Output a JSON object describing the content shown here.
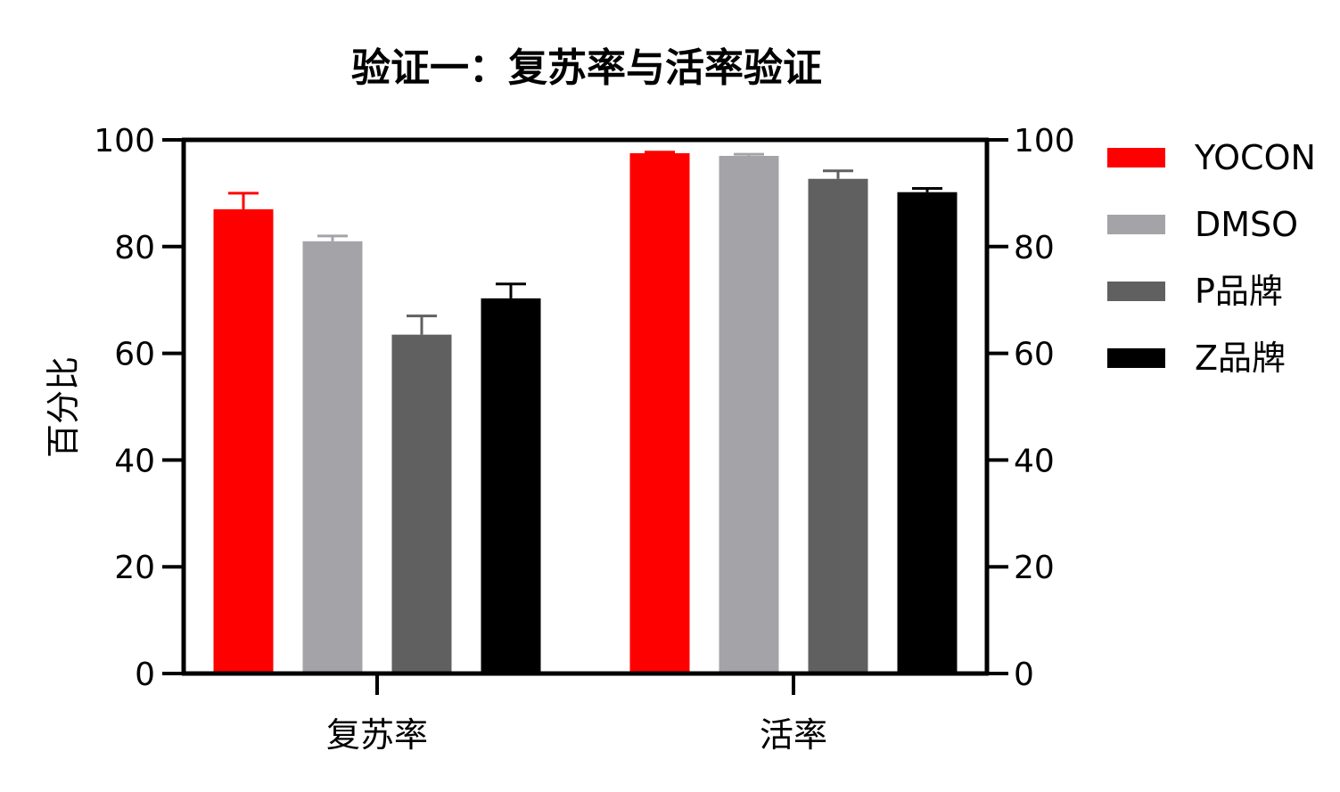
{
  "chart_data": {
    "type": "bar",
    "title": "验证一：复苏率与活率验证",
    "ylabel": "百分比",
    "ylim": [
      0,
      100
    ],
    "yticks": [
      0,
      20,
      40,
      60,
      80,
      100
    ],
    "secondary_yticks": [
      0,
      20,
      40,
      60,
      80,
      100
    ],
    "categories": [
      "复苏率",
      "活率"
    ],
    "series": [
      {
        "name": "YOCON",
        "color": "#ff0000",
        "values": [
          87,
          97.5
        ],
        "errors": [
          3,
          0.2
        ]
      },
      {
        "name": "DMSO",
        "color": "#a4a4a8",
        "values": [
          81,
          97
        ],
        "errors": [
          1,
          0.3
        ]
      },
      {
        "name": "P品牌",
        "color": "#606060",
        "values": [
          63.5,
          92.7
        ],
        "errors": [
          3.5,
          1.5
        ]
      },
      {
        "name": "Z品牌",
        "color": "#000000",
        "values": [
          70.3,
          90.2
        ],
        "errors": [
          2.7,
          0.7
        ]
      }
    ],
    "legend_position": "right",
    "grid": false
  }
}
